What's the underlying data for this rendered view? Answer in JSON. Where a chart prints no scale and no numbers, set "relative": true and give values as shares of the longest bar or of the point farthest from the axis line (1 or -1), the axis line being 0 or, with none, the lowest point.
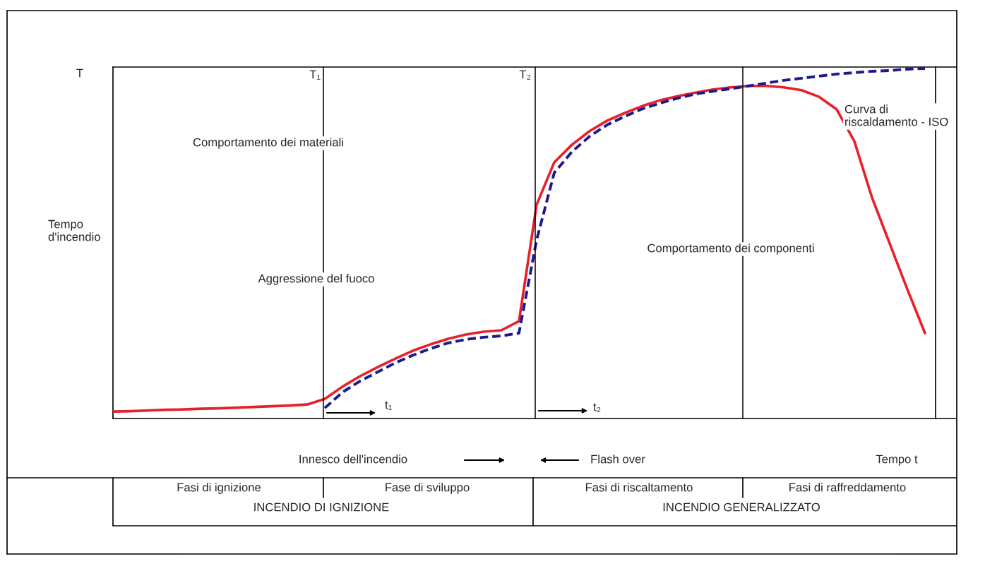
{
  "chart_data": {
    "type": "line",
    "relative": true,
    "ylabel": "Tempo\nd'incendio",
    "xlabel": "Tempo t",
    "categories": [
      null,
      null,
      null,
      null,
      null,
      null,
      null,
      null,
      null,
      null,
      null,
      null,
      null,
      null,
      null,
      null,
      null,
      null,
      null,
      null,
      null,
      null,
      null,
      null,
      null,
      null,
      null,
      null,
      null,
      null,
      null,
      null,
      null,
      null,
      null,
      null,
      null,
      null,
      null,
      null,
      null,
      null,
      null,
      null,
      null,
      null,
      null
    ],
    "series": [
      {
        "color": "#e8202a",
        "line_style": "solid",
        "values": [
          0.02,
          0.021,
          0.023,
          0.025,
          0.026,
          0.028,
          0.029,
          0.031,
          0.033,
          0.035,
          0.037,
          0.04,
          0.056,
          0.091,
          0.121,
          0.147,
          0.171,
          0.194,
          0.212,
          0.228,
          0.24,
          0.248,
          0.252,
          0.278,
          0.611,
          0.732,
          0.782,
          0.821,
          0.851,
          0.873,
          0.893,
          0.909,
          0.921,
          0.931,
          0.94,
          0.946,
          0.95,
          0.95,
          0.946,
          0.938,
          0.919,
          0.883,
          0.792,
          0.631,
          0.5,
          0.369,
          0.244
        ]
      },
      {
        "color": "#1a1a8c",
        "line_style": "dashed",
        "values": [
          null,
          null,
          null,
          null,
          null,
          null,
          null,
          null,
          null,
          null,
          null,
          null,
          0.03,
          0.075,
          0.107,
          0.133,
          0.159,
          0.181,
          0.2,
          0.216,
          0.226,
          0.232,
          0.236,
          0.244,
          0.51,
          0.702,
          0.762,
          0.806,
          0.839,
          0.863,
          0.885,
          0.901,
          0.915,
          0.927,
          0.935,
          0.942,
          0.95,
          0.958,
          0.966,
          0.972,
          0.978,
          0.984,
          0.988,
          0.992,
          0.994,
          0.998,
          1.0
        ]
      }
    ],
    "annotations": [
      "Comportamento dei materiali",
      "Aggressione del fuoco",
      "Comportamento dei componenti",
      "Curva di\nriscaldamento - ISO",
      "t₁",
      "t₂",
      "Innesco dell'incendio",
      "Flash over",
      "Fasi di ignizione",
      "Fase di sviluppo",
      "Fasi di riscaltamento",
      "Fasi di raffreddamento",
      "INCENDIO DI IGNIZIONE",
      "INCENDIO GENERALIZZATO",
      "T",
      "T₁",
      "T₂"
    ]
  }
}
